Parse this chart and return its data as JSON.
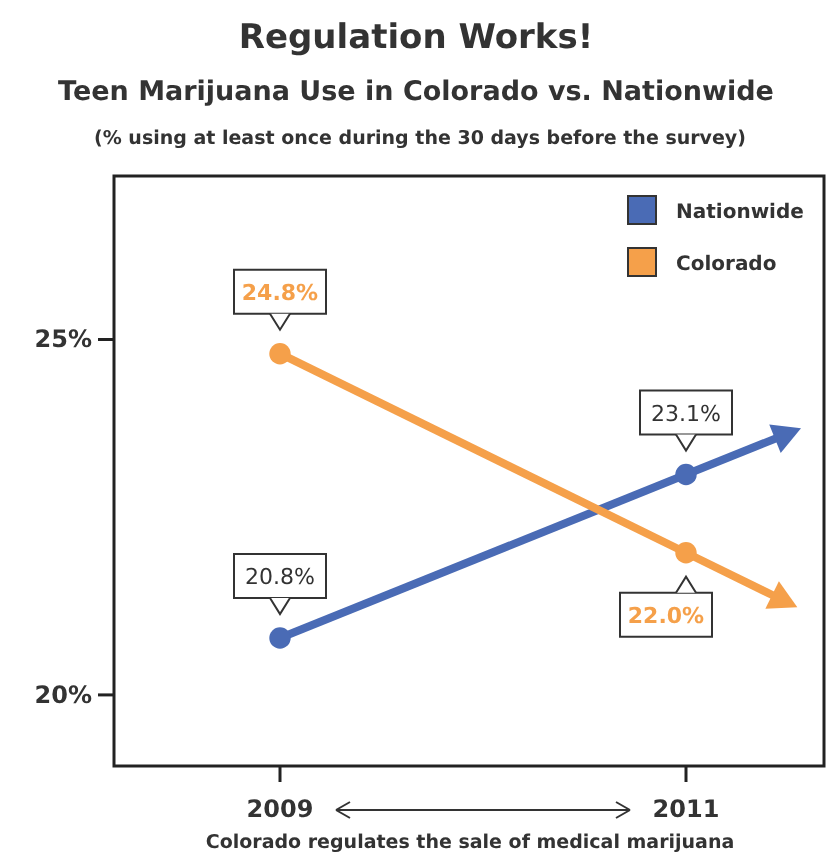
{
  "chart_data": {
    "type": "line",
    "title": "Regulation Works!",
    "subtitle": "Teen Marijuana Use in Colorado vs. Nationwide",
    "annotations": [
      "(% using at least once during the 30 days before the survey)"
    ],
    "xlabel": "Colorado regulates the sale of medical marijuana",
    "categories": [
      "2009",
      "2011"
    ],
    "series": [
      {
        "name": "Nationwide",
        "color": "#4a6bb5",
        "values": [
          20.8,
          23.1
        ],
        "value_labels": [
          "20.8%",
          "23.1%"
        ]
      },
      {
        "name": "Colorado",
        "color": "#f5a04a",
        "values": [
          24.8,
          22.0
        ],
        "value_labels": [
          "24.8%",
          "22.0%"
        ]
      }
    ],
    "ylim": [
      19,
      27.3
    ],
    "yticks": [
      {
        "value": 20,
        "label": "20%"
      },
      {
        "value": 25,
        "label": "25%"
      }
    ],
    "legend": "top right",
    "marker": "circle",
    "line_style": "solid",
    "grid": false
  }
}
